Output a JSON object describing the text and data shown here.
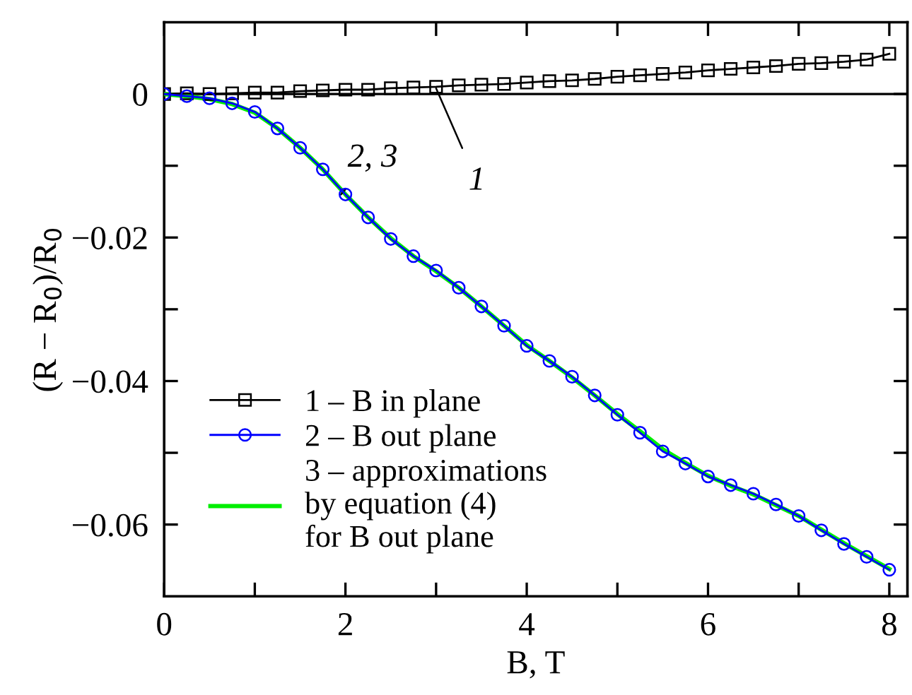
{
  "chart_data": {
    "type": "line",
    "xlabel": "B, T",
    "ylabel": "(R − R$_{0}$)/R$_{0}$",
    "xlim": [
      0,
      8.2
    ],
    "ylim": [
      -0.07,
      0.01
    ],
    "xticks": [
      0,
      {
        "value": 1,
        "label": null
      },
      2,
      {
        "value": 3,
        "label": null
      },
      4,
      {
        "value": 5,
        "label": null
      },
      6,
      {
        "value": 7,
        "label": null
      },
      8
    ],
    "yticks": [
      {
        "value": 0,
        "label": "0"
      },
      {
        "value": -0.01,
        "label": null
      },
      {
        "value": -0.02,
        "label": "−0.02"
      },
      {
        "value": -0.03,
        "label": null
      },
      {
        "value": -0.04,
        "label": "−0.04"
      },
      {
        "value": -0.05,
        "label": null
      },
      {
        "value": -0.06,
        "label": "−0.06"
      }
    ],
    "grid": false,
    "legend": "bottom left",
    "ref_lines": [
      {
        "axis": "y",
        "value": 0,
        "color": "#000000"
      }
    ],
    "annotations": [
      {
        "text": "1",
        "x": 3.0,
        "y": 0.0008
      },
      {
        "text": "2, 3",
        "x": 1.95,
        "y": -0.014
      }
    ],
    "series": [
      {
        "name": "1 – B in plane",
        "color": "#000000",
        "marker": "square",
        "x": [
          0,
          0.25,
          0.5,
          0.75,
          1,
          1.25,
          1.5,
          1.75,
          2,
          2.25,
          2.5,
          2.75,
          3,
          3.25,
          3.5,
          3.75,
          4,
          4.25,
          4.5,
          4.75,
          5,
          5.25,
          5.5,
          5.75,
          6,
          6.25,
          6.5,
          6.75,
          7,
          7.25,
          7.5,
          7.75,
          8
        ],
        "values": [
          0,
          0.0001,
          0,
          0.0001,
          0.0002,
          0.0002,
          0.0004,
          0.0005,
          0.0006,
          0.0006,
          0.0008,
          0.0009,
          0.001,
          0.0012,
          0.0013,
          0.0014,
          0.0016,
          0.0018,
          0.0019,
          0.0021,
          0.0024,
          0.0026,
          0.0028,
          0.003,
          0.0033,
          0.0035,
          0.0037,
          0.0039,
          0.0042,
          0.0043,
          0.0045,
          0.0048,
          0.0056
        ]
      },
      {
        "name": "2 – B out plane",
        "color": "#0000ff",
        "marker": "circle",
        "x": [
          0,
          0.25,
          0.5,
          0.75,
          1,
          1.25,
          1.5,
          1.75,
          2,
          2.25,
          2.5,
          2.75,
          3,
          3.25,
          3.5,
          3.75,
          4,
          4.25,
          4.5,
          4.75,
          5,
          5.25,
          5.5,
          5.75,
          6,
          6.25,
          6.5,
          6.75,
          7,
          7.25,
          7.5,
          7.75,
          8
        ],
        "values": [
          0,
          -0.0003,
          -0.0006,
          -0.0013,
          -0.0025,
          -0.0048,
          -0.0075,
          -0.0105,
          -0.014,
          -0.0172,
          -0.0202,
          -0.0226,
          -0.0246,
          -0.027,
          -0.0296,
          -0.0323,
          -0.0351,
          -0.0372,
          -0.0394,
          -0.042,
          -0.0447,
          -0.0472,
          -0.0498,
          -0.0515,
          -0.0533,
          -0.0545,
          -0.0557,
          -0.0572,
          -0.0588,
          -0.0608,
          -0.0627,
          -0.0645,
          -0.0663
        ]
      },
      {
        "name": "3 – approximations\nby equation (4)\nfor B out plane",
        "color": "#00ee00",
        "marker": "none",
        "x": [
          0,
          0.25,
          0.5,
          0.75,
          1,
          1.25,
          1.5,
          1.75,
          2,
          2.25,
          2.5,
          2.75,
          3,
          3.25,
          3.5,
          3.75,
          4,
          4.25,
          4.5,
          4.75,
          5,
          5.25,
          5.5,
          5.75,
          6,
          6.25,
          6.5,
          6.75,
          7,
          7.25,
          7.5,
          7.75,
          8
        ],
        "values": [
          0,
          -0.0003,
          -0.0007,
          -0.0014,
          -0.0026,
          -0.0048,
          -0.0075,
          -0.0105,
          -0.014,
          -0.0172,
          -0.0201,
          -0.0226,
          -0.0247,
          -0.027,
          -0.0296,
          -0.0323,
          -0.035,
          -0.0372,
          -0.0395,
          -0.042,
          -0.0446,
          -0.047,
          -0.0495,
          -0.0514,
          -0.0532,
          -0.0546,
          -0.0558,
          -0.0573,
          -0.0588,
          -0.0607,
          -0.0626,
          -0.0644,
          -0.0662
        ]
      }
    ]
  }
}
